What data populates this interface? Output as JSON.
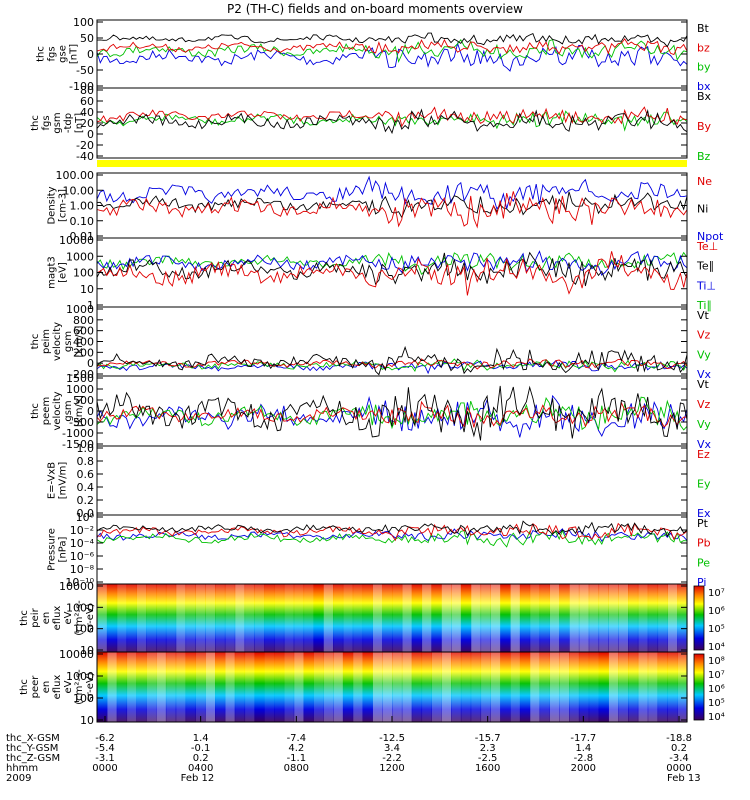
{
  "title": "P2 (TH-C) fields and on-board moments overview",
  "colors": {
    "black": "#000000",
    "red": "#e00000",
    "green": "#00c000",
    "blue": "#0000e0",
    "yellow": "#ffff00"
  },
  "chart_data": {
    "type": "line",
    "x_time_labels": [
      "0000",
      "0400",
      "0800",
      "1200",
      "1600",
      "2000",
      "0000"
    ],
    "x_date_labels": [
      "Feb 12",
      "Feb 13"
    ],
    "x_year_label": "2009",
    "x_row_labels": [
      "thc_X-GSM",
      "thc_Y-GSM",
      "thc_Z-GSM",
      "hhmm"
    ],
    "orbit_rows": [
      [
        "-6.2",
        "1.4",
        "-7.4",
        "-12.5",
        "-15.7",
        "-17.7",
        "-18.8"
      ],
      [
        "-5.4",
        "-0.1",
        "4.2",
        "3.4",
        "2.3",
        "1.4",
        "0.2"
      ],
      [
        "-3.1",
        "0.2",
        "-1.1",
        "-2.2",
        "-2.5",
        "-2.8",
        "-3.4"
      ]
    ],
    "panels": [
      {
        "id": "fgs_gse",
        "ylabel": [
          "thc",
          "fgs",
          "gse",
          "[nT]"
        ],
        "yticks": [
          "100",
          "50",
          "0",
          "-50",
          "-100"
        ],
        "legend": [
          {
            "name": "Bt",
            "color": "black"
          },
          {
            "name": "bz",
            "color": "red"
          },
          {
            "name": "by",
            "color": "green"
          },
          {
            "name": "bx",
            "color": "blue"
          }
        ]
      },
      {
        "id": "fgs_gsm",
        "ylabel": [
          "thc",
          "fgs",
          "gsm",
          "-tdp",
          "[nT]"
        ],
        "yticks": [
          "80",
          "60",
          "40",
          "20",
          "0",
          "-20",
          "-40"
        ],
        "legend": [
          {
            "name": "Bx",
            "color": "black"
          },
          {
            "name": "By",
            "color": "red"
          },
          {
            "name": "Bz",
            "color": "green"
          }
        ]
      },
      {
        "id": "density",
        "ylabel": [
          "Density",
          "[cm-3]"
        ],
        "yticks": [
          "100.00",
          "10.00",
          "1.00",
          "0.10",
          "0.01"
        ],
        "legend": [
          {
            "name": "Ne",
            "color": "red"
          },
          {
            "name": "Ni",
            "color": "black"
          },
          {
            "name": "Npot",
            "color": "blue"
          }
        ]
      },
      {
        "id": "temperature",
        "ylabel": [
          "magt3",
          "[eV]"
        ],
        "yticks": [
          "10000",
          "1000",
          "100",
          "10",
          "1"
        ],
        "legend": [
          {
            "name": "Te⊥",
            "color": "red"
          },
          {
            "name": "Te∥",
            "color": "black"
          },
          {
            "name": "Ti⊥",
            "color": "blue"
          },
          {
            "name": "Ti∥",
            "color": "green"
          }
        ]
      },
      {
        "id": "peim_velocity",
        "ylabel": [
          "thc",
          "peim",
          "velocity",
          "gsm",
          "[km/s]"
        ],
        "yticks": [
          "1000",
          "800",
          "600",
          "400",
          "200",
          "0",
          "-200"
        ],
        "legend": [
          {
            "name": "Vt",
            "color": "black"
          },
          {
            "name": "Vz",
            "color": "red"
          },
          {
            "name": "Vy",
            "color": "green"
          },
          {
            "name": "Vx",
            "color": "blue"
          }
        ]
      },
      {
        "id": "peem_velocity",
        "ylabel": [
          "thc",
          "peem",
          "velocity",
          "gsm",
          "[km/s]"
        ],
        "yticks": [
          "1500",
          "1000",
          "500",
          "0",
          "-500",
          "-1000",
          "-1500"
        ],
        "legend": [
          {
            "name": "Vt",
            "color": "black"
          },
          {
            "name": "Vz",
            "color": "red"
          },
          {
            "name": "Vy",
            "color": "green"
          },
          {
            "name": "Vx",
            "color": "blue"
          }
        ]
      },
      {
        "id": "efield",
        "ylabel": [
          "E=-VxB",
          "[mV/m]"
        ],
        "yticks": [
          "1.0",
          "0.8",
          "0.6",
          "0.4",
          "0.2",
          "0.0"
        ],
        "legend": [
          {
            "name": "Ez",
            "color": "red"
          },
          {
            "name": "Ey",
            "color": "green"
          },
          {
            "name": "Ex",
            "color": "blue"
          }
        ]
      },
      {
        "id": "pressure",
        "ylabel": [
          "Pressure",
          "[nPa]"
        ],
        "yticks": [
          "10⁰",
          "10⁻²",
          "10⁻⁴",
          "10⁻⁶",
          "10⁻⁸",
          "10⁻¹⁰"
        ],
        "legend": [
          {
            "name": "Pt",
            "color": "black"
          },
          {
            "name": "Pb",
            "color": "red"
          },
          {
            "name": "Pe",
            "color": "green"
          },
          {
            "name": "Pi",
            "color": "blue"
          }
        ]
      },
      {
        "id": "peir_spec",
        "ylabel": [
          "thc",
          "peir",
          "en",
          "eflux",
          "eV",
          "(cm²-s-",
          "sr-eV)"
        ],
        "yticks": [
          "10000",
          "1000",
          "100",
          "10"
        ],
        "colorbar": [
          "10⁷",
          "10⁶",
          "10⁵",
          "10⁴"
        ]
      },
      {
        "id": "peer_spec",
        "ylabel": [
          "thc",
          "peer",
          "en",
          "eflux",
          "eV",
          "(cm²-s-",
          "sr-eV)"
        ],
        "yticks": [
          "10000",
          "1000",
          "100",
          "10"
        ],
        "colorbar": [
          "10⁸",
          "10⁷",
          "10⁶",
          "10⁵",
          "10⁴"
        ]
      }
    ]
  }
}
